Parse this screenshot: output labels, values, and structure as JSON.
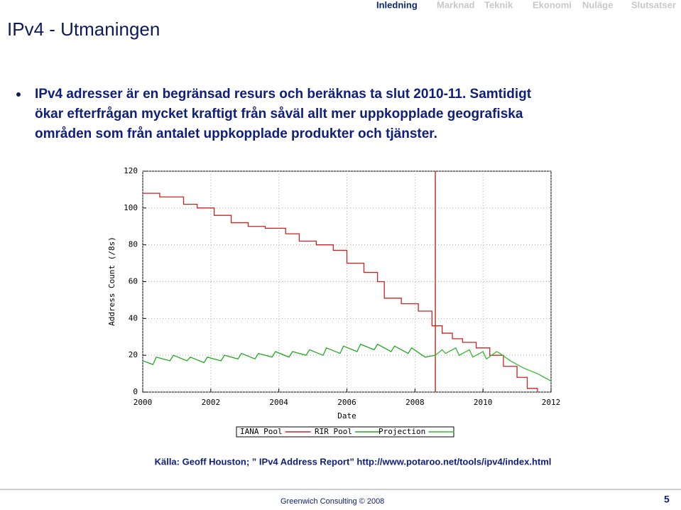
{
  "header": {
    "title": "IPv4 - Utmaningen",
    "nav": [
      "Inledning",
      "Marknad",
      "Teknik",
      "Ekonomi",
      "Nuläge",
      "Slutsatser"
    ]
  },
  "bullet": {
    "lines": [
      "IPv4 adresser är en begränsad resurs och beräknas ta slut 2010-11. Samtidigt",
      "ökar efterfrågan mycket kraftigt från såväl allt mer uppkopplade geografiska",
      "områden som från antalet uppkopplade produkter och tjänster."
    ]
  },
  "source": "Källa: Geoff Houston; ” IPv4 Address Report” http://www.potaroo.net/tools/ipv4/index.html",
  "footer": {
    "company": "Greenwich Consulting © 2008",
    "page": "5"
  },
  "chart_data": {
    "type": "line",
    "x_label": "Date",
    "y_label": "Address Count (/8s)",
    "xlim": [
      2000,
      2012
    ],
    "ylim": [
      0,
      120
    ],
    "xticks": [
      2000,
      2002,
      2004,
      2006,
      2008,
      2010,
      2012
    ],
    "yticks": [
      0,
      20,
      40,
      60,
      80,
      100,
      120
    ],
    "grid": true,
    "marker_x": 2008.6,
    "marker_color": "#c0392b",
    "series": [
      {
        "name": "IANA Pool",
        "color": "#cc2222",
        "step": true,
        "x": [
          2000,
          2000.5,
          2001.2,
          2001.6,
          2002.1,
          2002.6,
          2003.1,
          2003.6,
          2004.2,
          2004.6,
          2005.1,
          2005.6,
          2006.0,
          2006.5,
          2006.9,
          2007.1,
          2007.6,
          2008.1,
          2008.5,
          2008.8,
          2009.1,
          2009.4,
          2009.8,
          2010.2,
          2010.6,
          2011.0,
          2011.3,
          2011.6
        ],
        "values": [
          108,
          106,
          102,
          100,
          96,
          92,
          90,
          89,
          86,
          82,
          80,
          77,
          70,
          65,
          60,
          51,
          48,
          44,
          36,
          32,
          29,
          27,
          24,
          20,
          14,
          8,
          2,
          0
        ]
      },
      {
        "name": "RIR Pool",
        "color": "#22aa22",
        "step": false,
        "x": [
          2000,
          2000.3,
          2000.4,
          2000.8,
          2000.9,
          2001.3,
          2001.4,
          2001.8,
          2001.9,
          2002.3,
          2002.4,
          2002.8,
          2002.9,
          2003.3,
          2003.4,
          2003.8,
          2003.9,
          2004.3,
          2004.4,
          2004.8,
          2004.9,
          2005.3,
          2005.4,
          2005.8,
          2005.9,
          2006.3,
          2006.4,
          2006.8,
          2006.9,
          2007.3,
          2007.4,
          2007.8,
          2007.9,
          2008.3,
          2008.6
        ],
        "values": [
          17,
          15,
          19,
          17,
          20,
          17,
          19,
          16,
          19,
          17,
          20,
          18,
          21,
          18,
          21,
          19,
          22,
          19,
          22,
          20,
          23,
          20,
          24,
          21,
          25,
          22,
          26,
          23,
          26,
          22,
          25,
          21,
          24,
          19,
          20
        ]
      },
      {
        "name": "Projection",
        "color": "#33bb33",
        "step": false,
        "x": [
          2008.6,
          2008.8,
          2008.9,
          2009.2,
          2009.3,
          2009.6,
          2009.7,
          2010.0,
          2010.1,
          2010.4,
          2010.5,
          2010.8,
          2011.2,
          2011.6,
          2012.0
        ],
        "values": [
          20,
          23,
          21,
          24,
          20,
          23,
          19,
          22,
          18,
          22,
          21,
          17,
          13,
          10,
          6
        ]
      }
    ]
  }
}
